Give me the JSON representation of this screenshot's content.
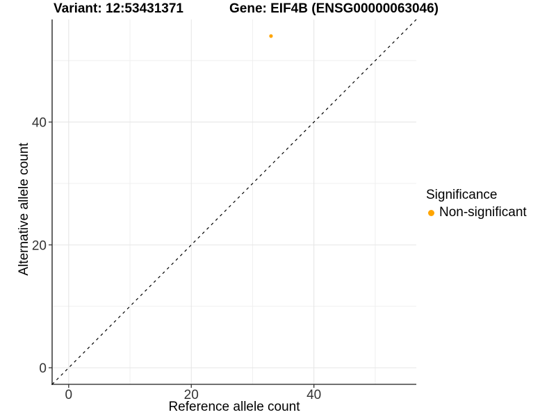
{
  "figure": {
    "background": "#FFFFFF"
  },
  "chart_data": {
    "type": "scatter",
    "titles": {
      "left": "Variant: 12:53431371",
      "right": "Gene: EIF4B (ENSG00000063046)"
    },
    "xlabel": "Reference allele count",
    "ylabel": "Alternative allele count",
    "xlim": [
      -2.7,
      56.7
    ],
    "ylim": [
      -2.7,
      56.7
    ],
    "x_ticks": [
      0,
      20,
      40
    ],
    "y_ticks": [
      0,
      20,
      40
    ],
    "x_minor_grid": [
      10,
      30,
      50
    ],
    "y_minor_grid": [
      10,
      30,
      50
    ],
    "grid": "on",
    "legend_position": "right",
    "points": [
      {
        "x": 33,
        "y": 54,
        "series": "Non-significant"
      }
    ],
    "reference_line": {
      "kind": "identity",
      "x1": -2.7,
      "y1": -2.7,
      "x2": 56.7,
      "y2": 56.7,
      "dashed": true
    },
    "legend": {
      "title": "Significance",
      "items": [
        {
          "label": "Non-significant",
          "color": "#FFA500",
          "marker": "circle"
        }
      ]
    },
    "colors": {
      "point": "#FFA500",
      "reference_line": "#000000",
      "grid_major": "#E6E6E6",
      "grid_minor": "#EFEFEF",
      "axis_line": "#404040",
      "tick": "#333333",
      "tick_label": "#333333",
      "text": "#000000"
    }
  }
}
